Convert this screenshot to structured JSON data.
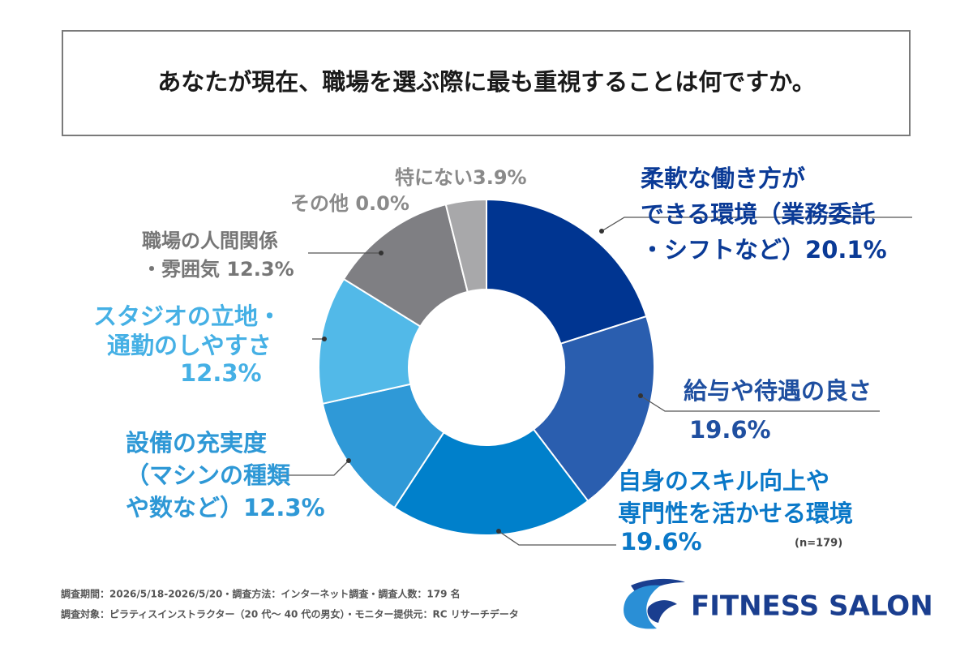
{
  "chart_data": {
    "type": "donut",
    "title": "あなたが現在、職場を選ぶ際に最も重視することは何ですか。",
    "categories": [
      [
        "柔軟な働き方が",
        "できる環境（業務委託",
        "・シフトなど）"
      ],
      [
        "給与や待遇の良さ"
      ],
      [
        "自身のスキル向上や",
        "専門性を活かせる環境"
      ],
      [
        "設備の充実度",
        "（マシンの種類",
        "や数など）"
      ],
      [
        "スタジオの立地・",
        "通勤のしやすさ"
      ],
      [
        "職場の人間関係",
        "・雰囲気 "
      ],
      [
        "その他 "
      ],
      [
        "特にない"
      ]
    ],
    "values": [
      20.1,
      19.6,
      19.6,
      12.3,
      12.3,
      12.3,
      0.0,
      3.9
    ],
    "value_labels": [
      "20.1%",
      "19.6%",
      "19.6%",
      "12.3%",
      "12.3%",
      "12.3%",
      "0.0%",
      "3.9%"
    ],
    "colors": [
      "#003591",
      "#2a5eaf",
      "#0080cb",
      "#2f99d7",
      "#52b9e8",
      "#7f7f83",
      "#9a9a9c",
      "#a8a8aa"
    ],
    "sample_note": "(n=179)",
    "footnotes": [
      "調査期間：2026/5/18-2026/5/20・調査方法：インターネット調査・調査人数：179 名",
      "調査対象：ピラティスインストラクター（20 代～ 40 代の男女）・モニター提供元：RC リサーチデータ"
    ],
    "brand": "FITNESS SALON"
  }
}
